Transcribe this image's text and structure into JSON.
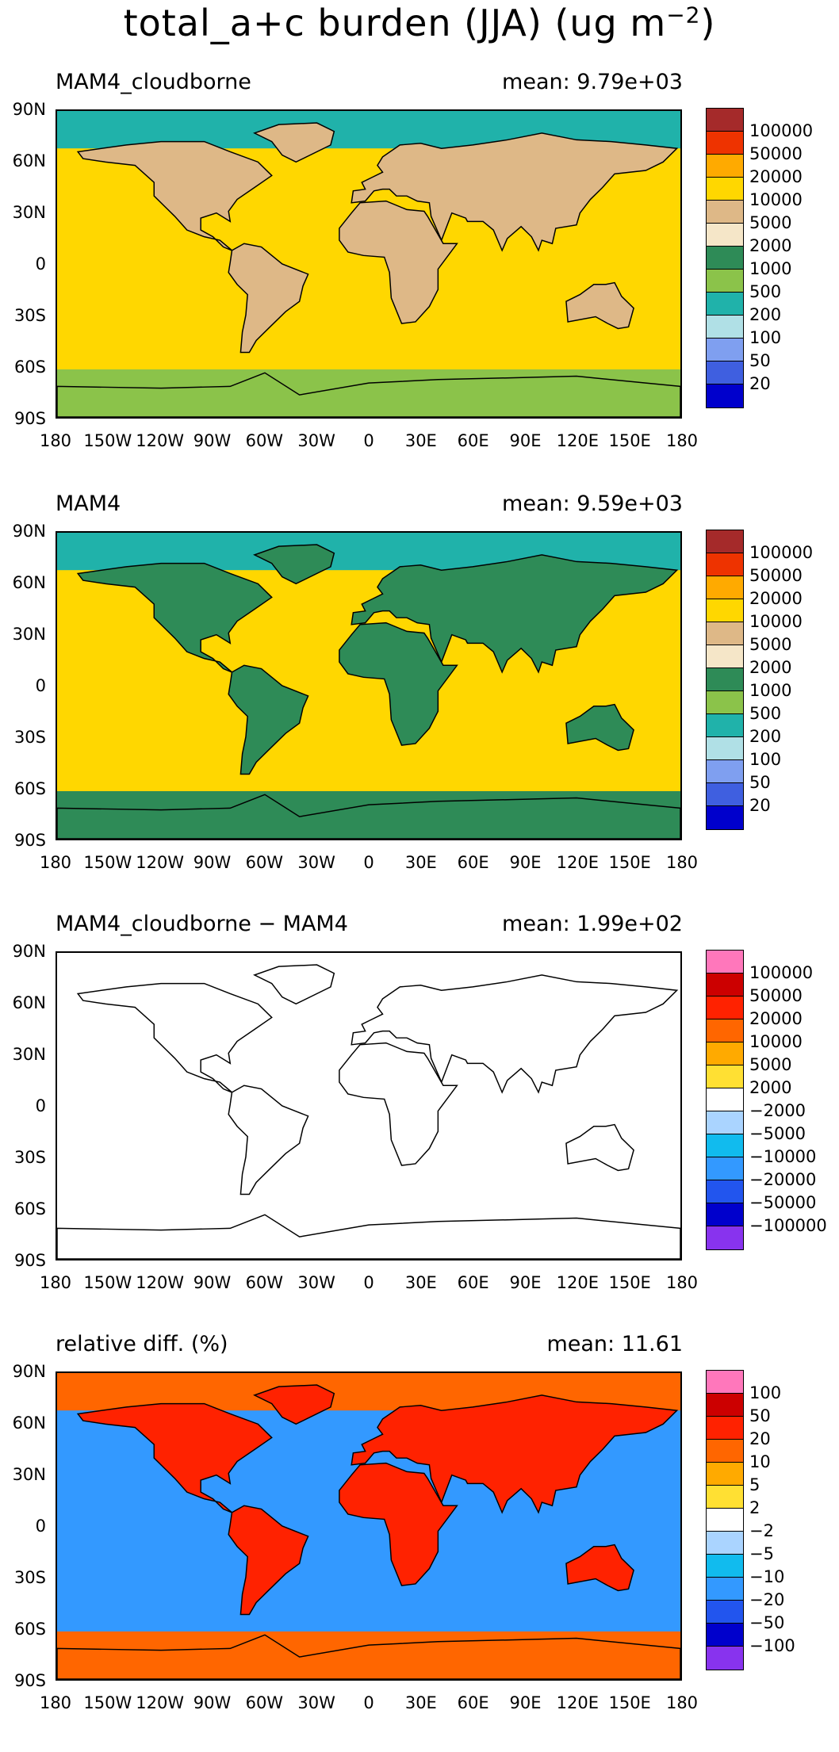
{
  "title": "total_a+c burden (JJA) (ug m",
  "title_exp": "−2",
  "title_close": ")",
  "lat_labels": [
    "90N",
    "60N",
    "30N",
    "0",
    "30S",
    "60S",
    "90S"
  ],
  "lon_labels": [
    "180",
    "150W",
    "120W",
    "90W",
    "60W",
    "30W",
    "0",
    "30E",
    "60E",
    "90E",
    "120E",
    "150E",
    "180"
  ],
  "panels": [
    {
      "label": "MAM4_cloudborne",
      "mean": "mean: 9.79e+03",
      "colors": [
        "#a52a2a",
        "#ee3300",
        "#ffaa00",
        "#ffd700",
        "#deb887",
        "#f5e6c8",
        "#2e8b57",
        "#8bc34a",
        "#20b2aa",
        "#b0e0e6",
        "#7f9ff0",
        "#3f5fe0",
        "#0000cc"
      ],
      "levels": [
        "100000",
        "50000",
        "20000",
        "10000",
        "5000",
        "2000",
        "1000",
        "500",
        "200",
        "100",
        "50",
        "20"
      ],
      "ocean": "#ffd700",
      "land": "#deb887",
      "arctic": "#20b2aa",
      "antarctic": "#8bc34a"
    },
    {
      "label": "MAM4",
      "mean": "mean: 9.59e+03",
      "colors": [
        "#a52a2a",
        "#ee3300",
        "#ffaa00",
        "#ffd700",
        "#deb887",
        "#f5e6c8",
        "#2e8b57",
        "#8bc34a",
        "#20b2aa",
        "#b0e0e6",
        "#7f9ff0",
        "#3f5fe0",
        "#0000cc"
      ],
      "levels": [
        "100000",
        "50000",
        "20000",
        "10000",
        "5000",
        "2000",
        "1000",
        "500",
        "200",
        "100",
        "50",
        "20"
      ],
      "ocean": "#ffd700",
      "land": "#2e8b57",
      "arctic": "#20b2aa",
      "antarctic": "#2e8b57"
    },
    {
      "label": "MAM4_cloudborne − MAM4",
      "mean": "mean: 1.99e+02",
      "colors": [
        "#ff77bb",
        "#cc0000",
        "#ff2200",
        "#ff6600",
        "#ffaa00",
        "#ffe033",
        "#ffffff",
        "#aad4ff",
        "#11bbee",
        "#3399ff",
        "#2255ee",
        "#0000cc",
        "#8833ee"
      ],
      "levels": [
        "100000",
        "50000",
        "20000",
        "10000",
        "5000",
        "2000",
        "−2000",
        "−5000",
        "−10000",
        "−20000",
        "−50000",
        "−100000"
      ],
      "ocean": "#ffffff",
      "land": "#ffffff",
      "arctic": "#ffffff",
      "antarctic": "#ffffff"
    },
    {
      "label": "relative diff. (%)",
      "mean": "mean: 11.61",
      "colors": [
        "#ff77bb",
        "#cc0000",
        "#ff2200",
        "#ff6600",
        "#ffaa00",
        "#ffe033",
        "#ffffff",
        "#aad4ff",
        "#11bbee",
        "#3399ff",
        "#2255ee",
        "#0000cc",
        "#8833ee"
      ],
      "levels": [
        "100",
        "50",
        "20",
        "10",
        "5",
        "2",
        "−2",
        "−5",
        "−10",
        "−20",
        "−50",
        "−100"
      ],
      "ocean": "#3399ff",
      "land": "#ff2200",
      "arctic": "#ff6600",
      "antarctic": "#ff6600"
    }
  ]
}
